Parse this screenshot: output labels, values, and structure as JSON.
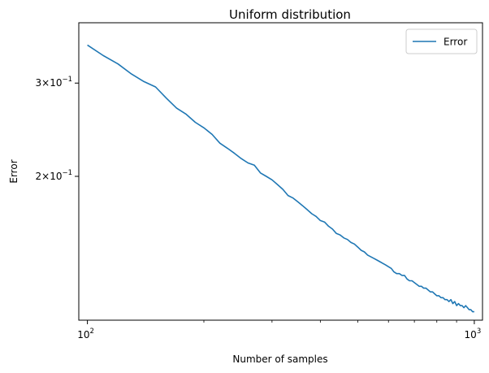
{
  "chart_data": {
    "type": "line",
    "title": "Uniform distribution",
    "xlabel": "Number of samples",
    "ylabel": "Error",
    "x_scale": "log",
    "y_scale": "log",
    "xlim": [
      95,
      1050
    ],
    "ylim": [
      0.107,
      0.39
    ],
    "x_ticks": [
      {
        "value": 100,
        "base": "10",
        "exp": "2"
      },
      {
        "value": 1000,
        "base": "10",
        "exp": "3"
      }
    ],
    "y_ticks": [
      {
        "value": 0.3,
        "mant": "3",
        "base": "10",
        "exp": "−1"
      },
      {
        "value": 0.2,
        "mant": "2",
        "base": "10",
        "exp": "−1"
      }
    ],
    "legend": {
      "placement": "upper right",
      "entries": [
        "Error"
      ]
    },
    "grid": false,
    "series_color": "#1f77b4",
    "series": [
      {
        "name": "Error",
        "points": [
          [
            100,
            0.354
          ],
          [
            110,
            0.338
          ],
          [
            120,
            0.326
          ],
          [
            130,
            0.312
          ],
          [
            140,
            0.302
          ],
          [
            150,
            0.295
          ],
          [
            160,
            0.281
          ],
          [
            170,
            0.269
          ],
          [
            180,
            0.262
          ],
          [
            190,
            0.253
          ],
          [
            200,
            0.247
          ],
          [
            210,
            0.24
          ],
          [
            220,
            0.231
          ],
          [
            230,
            0.226
          ],
          [
            240,
            0.221
          ],
          [
            250,
            0.216
          ],
          [
            260,
            0.212
          ],
          [
            270,
            0.21
          ],
          [
            280,
            0.203
          ],
          [
            290,
            0.2
          ],
          [
            300,
            0.197
          ],
          [
            310,
            0.193
          ],
          [
            320,
            0.189
          ],
          [
            330,
            0.184
          ],
          [
            340,
            0.182
          ],
          [
            350,
            0.179
          ],
          [
            360,
            0.176
          ],
          [
            370,
            0.173
          ],
          [
            380,
            0.17
          ],
          [
            390,
            0.168
          ],
          [
            400,
            0.165
          ],
          [
            410,
            0.164
          ],
          [
            420,
            0.161
          ],
          [
            430,
            0.159
          ],
          [
            440,
            0.156
          ],
          [
            450,
            0.155
          ],
          [
            460,
            0.153
          ],
          [
            470,
            0.152
          ],
          [
            480,
            0.15
          ],
          [
            490,
            0.149
          ],
          [
            500,
            0.147
          ],
          [
            510,
            0.145
          ],
          [
            520,
            0.144
          ],
          [
            530,
            0.142
          ],
          [
            540,
            0.141
          ],
          [
            550,
            0.14
          ],
          [
            560,
            0.139
          ],
          [
            570,
            0.138
          ],
          [
            580,
            0.137
          ],
          [
            590,
            0.136
          ],
          [
            600,
            0.135
          ],
          [
            610,
            0.134
          ],
          [
            620,
            0.132
          ],
          [
            630,
            0.131
          ],
          [
            640,
            0.131
          ],
          [
            650,
            0.13
          ],
          [
            660,
            0.13
          ],
          [
            670,
            0.128
          ],
          [
            680,
            0.127
          ],
          [
            690,
            0.127
          ],
          [
            700,
            0.126
          ],
          [
            710,
            0.125
          ],
          [
            720,
            0.124
          ],
          [
            730,
            0.124
          ],
          [
            740,
            0.123
          ],
          [
            750,
            0.123
          ],
          [
            760,
            0.122
          ],
          [
            770,
            0.121
          ],
          [
            780,
            0.121
          ],
          [
            790,
            0.12
          ],
          [
            800,
            0.119
          ],
          [
            810,
            0.119
          ],
          [
            820,
            0.118
          ],
          [
            830,
            0.118
          ],
          [
            840,
            0.117
          ],
          [
            850,
            0.117
          ],
          [
            860,
            0.116
          ],
          [
            870,
            0.117
          ],
          [
            880,
            0.115
          ],
          [
            890,
            0.116
          ],
          [
            900,
            0.114
          ],
          [
            910,
            0.115
          ],
          [
            920,
            0.114
          ],
          [
            930,
            0.114
          ],
          [
            940,
            0.113
          ],
          [
            950,
            0.114
          ],
          [
            960,
            0.113
          ],
          [
            970,
            0.112
          ],
          [
            980,
            0.112
          ],
          [
            990,
            0.111
          ],
          [
            1000,
            0.111
          ]
        ]
      }
    ]
  }
}
